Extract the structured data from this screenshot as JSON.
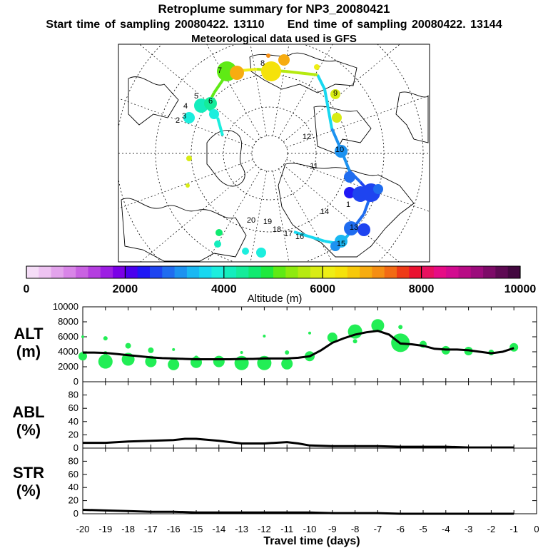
{
  "header": {
    "title": "Retroplume summary for NP3_20080421",
    "start_label": "Start time of sampling 20080422. 13110",
    "end_label": "End time of sampling 20080422. 13144",
    "met_label": "Meteorological data used is GFS"
  },
  "map_labels": {
    "day_labels": [
      "1",
      "2",
      "3",
      "4",
      "5",
      "6",
      "7",
      "8",
      "9",
      "10",
      "11",
      "12",
      "13",
      "14",
      "15",
      "16",
      "17",
      "18",
      "19",
      "20"
    ]
  },
  "colorbar": {
    "ticks": [
      "0",
      "2000",
      "4000",
      "6000",
      "8000",
      "10000"
    ],
    "label": "Altitude (m)",
    "colors": [
      "#f5ddf7",
      "#eec3f2",
      "#e3a3ec",
      "#d985e8",
      "#c962e2",
      "#b43edf",
      "#9d1ee3",
      "#7a00e6",
      "#4a00ee",
      "#1f17f5",
      "#1e44f0",
      "#1f6cef",
      "#1c92f0",
      "#1ab8f2",
      "#18d8f0",
      "#1ceede",
      "#14edbd",
      "#15ec9a",
      "#10ea70",
      "#1ee93e",
      "#5fea15",
      "#8eea0e",
      "#b6ea10",
      "#d8ec14",
      "#eeee15",
      "#f5e20a",
      "#f7c80a",
      "#f7ac10",
      "#f58e13",
      "#f26a14",
      "#ee3a17",
      "#ea1230",
      "#e8105f",
      "#e60c85",
      "#d20b8f",
      "#b80b85",
      "#9c0c7c",
      "#7d0b68",
      "#5e0a53",
      "#43083f"
    ]
  },
  "axes": {
    "alt_label": "ALT",
    "alt_unit": "(m)",
    "abl_label": "ABL",
    "abl_unit": "(%)",
    "str_label": "STR",
    "str_unit": "(%)",
    "xlabel": "Travel time (days)"
  },
  "chart_data": [
    {
      "type": "line",
      "title": "ALT",
      "ylabel": "(m)",
      "xlabel": "Travel time (days)",
      "xlim": [
        -20,
        0
      ],
      "ylim": [
        0,
        10000
      ],
      "yticks": [
        0,
        2000,
        4000,
        6000,
        8000,
        10000
      ],
      "x": [
        -20,
        -19.5,
        -19,
        -18.5,
        -18,
        -17.5,
        -17,
        -16.5,
        -16,
        -15.5,
        -15,
        -14.5,
        -14,
        -13.5,
        -13,
        -12.5,
        -12,
        -11.5,
        -11,
        -10.5,
        -10,
        -9.5,
        -9,
        -8.5,
        -8,
        -7.5,
        -7,
        -6.5,
        -6,
        -5.5,
        -5,
        -4.5,
        -4,
        -3.5,
        -3,
        -2.5,
        -2,
        -1.5,
        -1
      ],
      "values": [
        3900,
        3900,
        3850,
        3700,
        3550,
        3400,
        3250,
        3150,
        3100,
        3050,
        3000,
        3000,
        3000,
        3000,
        3050,
        3050,
        3100,
        3100,
        3100,
        3200,
        3400,
        4200,
        5200,
        5800,
        6300,
        6600,
        6800,
        6300,
        5100,
        5000,
        4800,
        4400,
        4300,
        4300,
        4200,
        4000,
        3800,
        4000,
        4500
      ],
      "bubbles": [
        {
          "x": -20,
          "y": 3400,
          "r": 6
        },
        {
          "x": -20,
          "y": 6000,
          "r": 2
        },
        {
          "x": -19,
          "y": 2700,
          "r": 10
        },
        {
          "x": -19,
          "y": 3800,
          "r": 3
        },
        {
          "x": -19,
          "y": 5800,
          "r": 3
        },
        {
          "x": -18,
          "y": 3000,
          "r": 9
        },
        {
          "x": -18,
          "y": 4800,
          "r": 4
        },
        {
          "x": -17,
          "y": 2700,
          "r": 8
        },
        {
          "x": -17,
          "y": 4200,
          "r": 4
        },
        {
          "x": -16,
          "y": 2300,
          "r": 8
        },
        {
          "x": -16,
          "y": 4300,
          "r": 2
        },
        {
          "x": -15,
          "y": 2600,
          "r": 8
        },
        {
          "x": -15,
          "y": 3200,
          "r": 3
        },
        {
          "x": -14,
          "y": 2700,
          "r": 8
        },
        {
          "x": -13,
          "y": 2500,
          "r": 10
        },
        {
          "x": -13,
          "y": 3900,
          "r": 2
        },
        {
          "x": -12,
          "y": 2500,
          "r": 10
        },
        {
          "x": -12,
          "y": 6100,
          "r": 2
        },
        {
          "x": -11,
          "y": 2400,
          "r": 8
        },
        {
          "x": -11,
          "y": 3900,
          "r": 3
        },
        {
          "x": -10,
          "y": 3400,
          "r": 7
        },
        {
          "x": -10,
          "y": 6500,
          "r": 2
        },
        {
          "x": -9,
          "y": 5900,
          "r": 7
        },
        {
          "x": -8,
          "y": 6700,
          "r": 10
        },
        {
          "x": -8,
          "y": 5400,
          "r": 3
        },
        {
          "x": -7,
          "y": 7500,
          "r": 9
        },
        {
          "x": -6,
          "y": 5200,
          "r": 13
        },
        {
          "x": -6,
          "y": 7300,
          "r": 3
        },
        {
          "x": -5,
          "y": 5000,
          "r": 5
        },
        {
          "x": -4,
          "y": 4200,
          "r": 6
        },
        {
          "x": -3,
          "y": 4100,
          "r": 6
        },
        {
          "x": -2,
          "y": 3900,
          "r": 4
        },
        {
          "x": -1,
          "y": 4600,
          "r": 6
        }
      ]
    },
    {
      "type": "line",
      "title": "ABL",
      "ylabel": "(%)",
      "xlim": [
        -20,
        0
      ],
      "ylim": [
        0,
        100
      ],
      "yticks": [
        0,
        20,
        40,
        60,
        80
      ],
      "x": [
        -20,
        -19,
        -18,
        -17,
        -16,
        -15.5,
        -15,
        -14,
        -13,
        -12,
        -11,
        -10.5,
        -10,
        -9,
        -8,
        -7,
        -6,
        -5,
        -4,
        -3,
        -2,
        -1
      ],
      "values": [
        8,
        8,
        10,
        11,
        12,
        14,
        14,
        11,
        7,
        7,
        9,
        7,
        4,
        3,
        3,
        3,
        2,
        2,
        2,
        1,
        1,
        1
      ]
    },
    {
      "type": "line",
      "title": "STR",
      "ylabel": "(%)",
      "xlim": [
        -20,
        0
      ],
      "ylim": [
        0,
        100
      ],
      "yticks": [
        0,
        20,
        40,
        60,
        80
      ],
      "x": [
        -20,
        -19,
        -18,
        -17,
        -16,
        -15,
        -14,
        -13,
        -12,
        -11,
        -10,
        -9,
        -8,
        -7,
        -6,
        -5,
        -4,
        -3,
        -2,
        -1
      ],
      "values": [
        6,
        5,
        4,
        3,
        3,
        2,
        2,
        2,
        2,
        2,
        2,
        1,
        1,
        1,
        0,
        0,
        0,
        0,
        0,
        0
      ]
    }
  ],
  "xticks": [
    "-20",
    "-19",
    "-18",
    "-17",
    "-16",
    "-15",
    "-14",
    "-13",
    "-12",
    "-11",
    "-10",
    "-9",
    "-8",
    "-7",
    "-6",
    "-5",
    "-4",
    "-3",
    "-2",
    "-1",
    "0"
  ]
}
